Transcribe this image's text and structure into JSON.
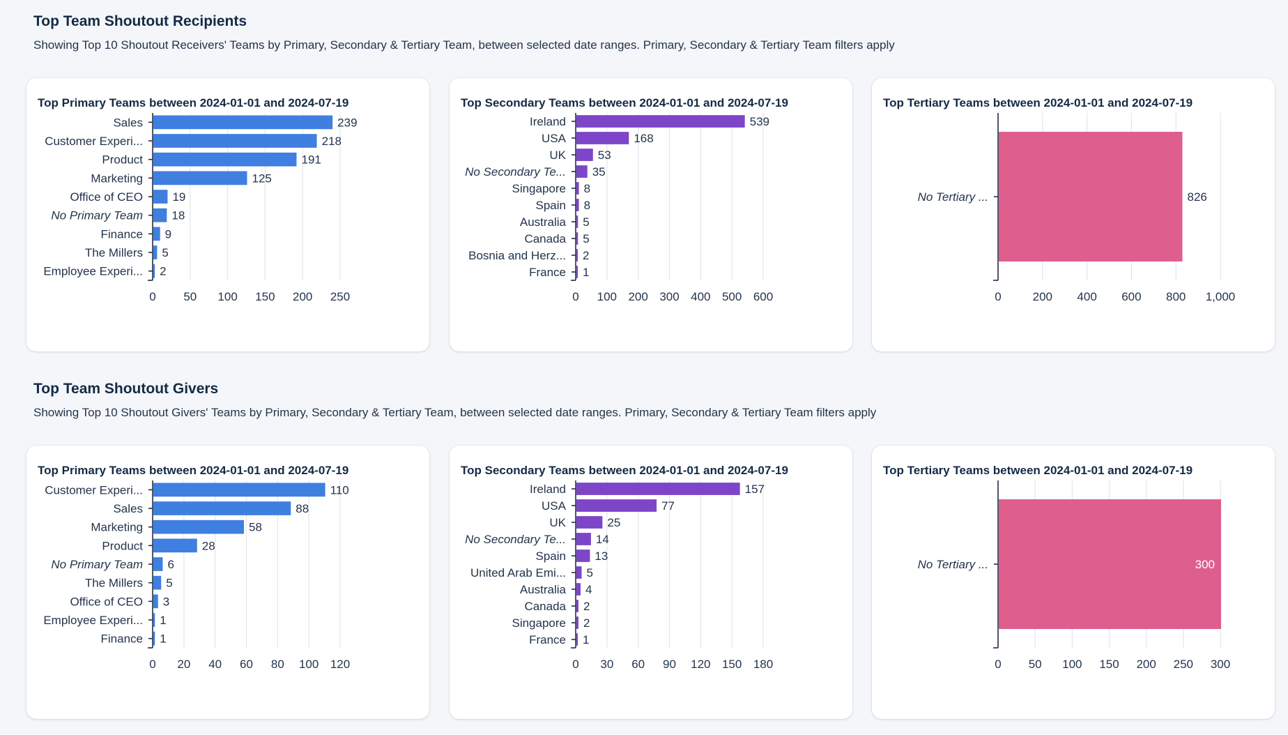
{
  "colors": {
    "primary": "#3f7fe0",
    "secondary": "#7d45c8",
    "tertiary": "#de5f8e"
  },
  "sections": [
    {
      "title": "Top Team Shoutout Recipients",
      "description": "Showing Top 10 Shoutout Receivers' Teams by Primary, Secondary & Tertiary Team, between selected date ranges. Primary, Secondary & Tertiary Team filters apply"
    },
    {
      "title": "Top Team Shoutout Givers",
      "description": "Showing Top 10 Shoutout Givers' Teams by Primary, Secondary & Tertiary Team, between selected date ranges. Primary, Secondary & Tertiary Team filters apply"
    }
  ],
  "chart_data": [
    {
      "type": "bar",
      "orientation": "horizontal",
      "title": "Top Primary Teams between 2024-01-01 and 2024-07-19",
      "categories": [
        "Sales",
        "Customer Experi...",
        "Product",
        "Marketing",
        "Office of CEO",
        "No Primary Team",
        "Finance",
        "The Millers",
        "Employee Experi..."
      ],
      "italic": [
        false,
        false,
        false,
        false,
        false,
        true,
        false,
        false,
        false
      ],
      "values": [
        239,
        218,
        191,
        125,
        19,
        18,
        9,
        5,
        2
      ],
      "labels": [
        "239",
        "218",
        "191",
        "125",
        "19",
        "18",
        "9",
        "5",
        "2"
      ],
      "xlim": [
        0,
        250
      ],
      "xticks": [
        "0",
        "50",
        "100",
        "150",
        "200",
        "250"
      ],
      "color": "#3f7fe0"
    },
    {
      "type": "bar",
      "orientation": "horizontal",
      "title": "Top Secondary Teams between 2024-01-01 and 2024-07-19",
      "categories": [
        "Ireland",
        "USA",
        "UK",
        "No Secondary Te...",
        "Singapore",
        "Spain",
        "Australia",
        "Canada",
        "Bosnia and Herz...",
        "France"
      ],
      "italic": [
        false,
        false,
        false,
        true,
        false,
        false,
        false,
        false,
        false,
        false
      ],
      "values": [
        539,
        168,
        53,
        35,
        8,
        8,
        5,
        5,
        2,
        1
      ],
      "labels": [
        "539",
        "168",
        "53",
        "35",
        "8",
        "8",
        "5",
        "5",
        "2",
        "1"
      ],
      "xlim": [
        0,
        600
      ],
      "xticks": [
        "0",
        "100",
        "200",
        "300",
        "400",
        "500",
        "600"
      ],
      "color": "#7d45c8"
    },
    {
      "type": "bar",
      "orientation": "horizontal",
      "title": "Top Tertiary Teams between 2024-01-01 and 2024-07-19",
      "categories": [
        "No Tertiary ..."
      ],
      "italic": [
        true
      ],
      "values": [
        826
      ],
      "labels": [
        "826"
      ],
      "xlim": [
        0,
        1000
      ],
      "xticks": [
        "0",
        "200",
        "400",
        "600",
        "800",
        "1,000"
      ],
      "color": "#de5f8e"
    },
    {
      "type": "bar",
      "orientation": "horizontal",
      "title": "Top Primary Teams between 2024-01-01 and 2024-07-19",
      "categories": [
        "Customer Experi...",
        "Sales",
        "Marketing",
        "Product",
        "No Primary Team",
        "The Millers",
        "Office of CEO",
        "Employee Experi...",
        "Finance"
      ],
      "italic": [
        false,
        false,
        false,
        false,
        true,
        false,
        false,
        false,
        false
      ],
      "values": [
        110,
        88,
        58,
        28,
        6,
        5,
        3,
        1,
        1
      ],
      "labels": [
        "110",
        "88",
        "58",
        "28",
        "6",
        "5",
        "3",
        "1",
        "1"
      ],
      "xlim": [
        0,
        120
      ],
      "xticks": [
        "0",
        "20",
        "40",
        "60",
        "80",
        "100",
        "120"
      ],
      "color": "#3f7fe0"
    },
    {
      "type": "bar",
      "orientation": "horizontal",
      "title": "Top Secondary Teams between 2024-01-01 and 2024-07-19",
      "categories": [
        "Ireland",
        "USA",
        "UK",
        "No Secondary Te...",
        "Spain",
        "United Arab Emi...",
        "Australia",
        "Canada",
        "Singapore",
        "France"
      ],
      "italic": [
        false,
        false,
        false,
        true,
        false,
        false,
        false,
        false,
        false,
        false
      ],
      "values": [
        157,
        77,
        25,
        14,
        13,
        5,
        4,
        2,
        2,
        1
      ],
      "labels": [
        "157",
        "77",
        "25",
        "14",
        "13",
        "5",
        "4",
        "2",
        "2",
        "1"
      ],
      "xlim": [
        0,
        180
      ],
      "xticks": [
        "0",
        "30",
        "60",
        "90",
        "120",
        "150",
        "180"
      ],
      "color": "#7d45c8"
    },
    {
      "type": "bar",
      "orientation": "horizontal",
      "title": "Top Tertiary Teams between 2024-01-01 and 2024-07-19",
      "categories": [
        "No Tertiary ..."
      ],
      "italic": [
        true
      ],
      "values": [
        300
      ],
      "labels": [
        "300"
      ],
      "xlim": [
        0,
        300
      ],
      "xticks": [
        "0",
        "50",
        "100",
        "150",
        "200",
        "250",
        "300"
      ],
      "color": "#de5f8e",
      "label_inside": true
    }
  ]
}
